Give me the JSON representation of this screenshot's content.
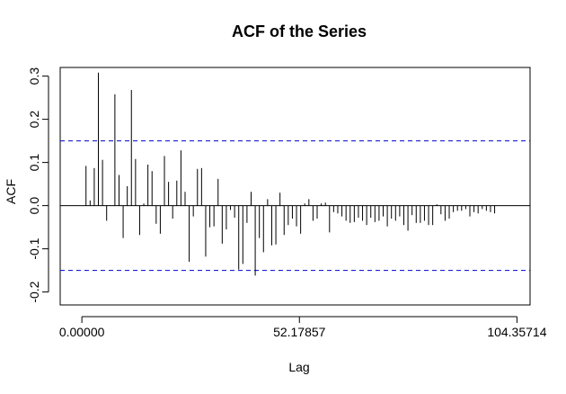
{
  "chart_data": {
    "type": "bar",
    "title": "ACF of the Series",
    "xlabel": "Lag",
    "ylabel": "ACF",
    "xlim": [
      -5.2,
      107.5
    ],
    "ylim": [
      -0.23,
      0.32
    ],
    "x_ticks": [
      {
        "value": 0.0,
        "label": "0.00000"
      },
      {
        "value": 52.17857,
        "label": "52.17857"
      },
      {
        "value": 104.35714,
        "label": "104.35714"
      }
    ],
    "y_ticks": [
      {
        "value": -0.2,
        "label": "-0.2"
      },
      {
        "value": -0.1,
        "label": "-0.1"
      },
      {
        "value": 0.0,
        "label": "0.0"
      },
      {
        "value": 0.1,
        "label": "0.1"
      },
      {
        "value": 0.2,
        "label": "0.2"
      },
      {
        "value": 0.3,
        "label": "0.3"
      }
    ],
    "confidence_bounds": [
      0.15,
      -0.15
    ],
    "confidence_color": "#0000cd",
    "stem_color": "#000000",
    "grid": false,
    "lag_step": 0.99,
    "values": [
      0.092,
      0.012,
      0.087,
      0.308,
      0.106,
      -0.035,
      0.0,
      0.258,
      0.071,
      -0.075,
      0.045,
      0.268,
      0.108,
      -0.068,
      0.005,
      0.095,
      0.08,
      -0.042,
      -0.065,
      0.115,
      0.055,
      -0.03,
      0.058,
      0.128,
      0.032,
      -0.13,
      -0.025,
      0.085,
      0.087,
      -0.118,
      -0.05,
      -0.048,
      0.062,
      -0.088,
      -0.055,
      -0.01,
      -0.028,
      -0.148,
      -0.135,
      -0.04,
      0.032,
      -0.162,
      -0.075,
      -0.108,
      0.015,
      -0.092,
      -0.09,
      0.03,
      -0.068,
      -0.045,
      -0.03,
      -0.048,
      -0.065,
      0.005,
      0.015,
      -0.035,
      -0.03,
      0.005,
      0.007,
      -0.062,
      -0.015,
      -0.018,
      -0.025,
      -0.035,
      -0.04,
      -0.038,
      -0.028,
      -0.035,
      -0.045,
      -0.028,
      -0.038,
      -0.035,
      -0.025,
      -0.048,
      -0.03,
      -0.035,
      -0.025,
      -0.045,
      -0.058,
      -0.022,
      -0.04,
      -0.04,
      -0.035,
      -0.045,
      -0.045,
      0.003,
      -0.02,
      -0.035,
      -0.03,
      -0.015,
      -0.012,
      -0.012,
      -0.008,
      -0.025,
      -0.015,
      -0.018,
      -0.008,
      -0.012,
      -0.015,
      -0.018
    ]
  }
}
